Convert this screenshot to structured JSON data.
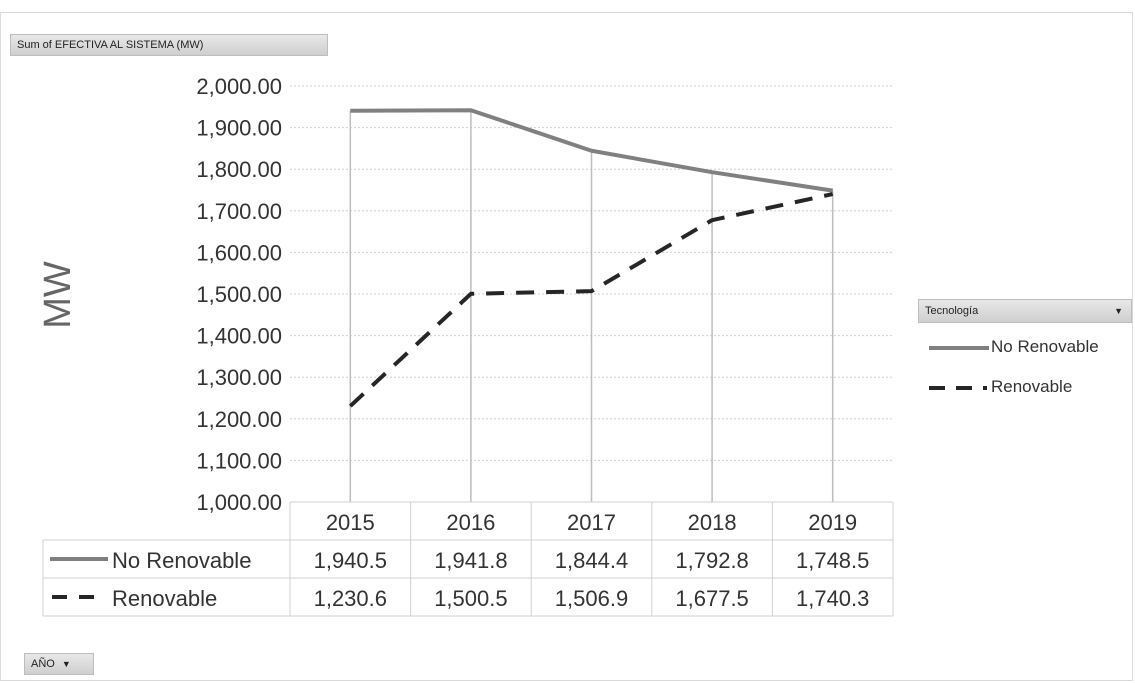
{
  "value_field": "Sum of EFECTIVA AL SISTEMA (MW)",
  "legend_field": "Tecnología",
  "axis_field": "AÑO",
  "chart_data": {
    "type": "line",
    "categories": [
      "2015",
      "2016",
      "2017",
      "2018",
      "2019"
    ],
    "series": [
      {
        "name": "No Renovable",
        "values": [
          1940.5,
          1941.8,
          1844.4,
          1792.8,
          1748.5
        ],
        "color": "#808080",
        "style": "solid"
      },
      {
        "name": "Renovable",
        "values": [
          1230.6,
          1500.5,
          1506.9,
          1677.5,
          1740.3
        ],
        "color": "#262626",
        "style": "dashed"
      }
    ],
    "ylabel": "MW",
    "ylim": [
      1000,
      2000
    ],
    "yticks": [
      "1,000.00",
      "1,100.00",
      "1,200.00",
      "1,300.00",
      "1,400.00",
      "1,500.00",
      "1,600.00",
      "1,700.00",
      "1,800.00",
      "1,900.00",
      "2,000.00"
    ],
    "table": {
      "No Renovable": [
        "1,940.5",
        "1,941.8",
        "1,844.4",
        "1,792.8",
        "1,748.5"
      ],
      "Renovable": [
        "1,230.6",
        "1,500.5",
        "1,506.9",
        "1,677.5",
        "1,740.3"
      ]
    },
    "legend_position": "right",
    "grid": true
  }
}
